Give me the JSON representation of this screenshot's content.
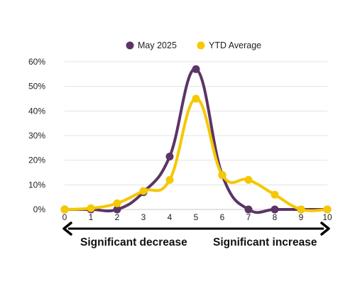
{
  "chart_data": {
    "type": "line",
    "x": [
      0,
      1,
      2,
      3,
      4,
      5,
      6,
      7,
      8,
      9,
      10
    ],
    "x_tick_labels": [
      "0",
      "1",
      "2",
      "3",
      "4",
      "5",
      "6",
      "7",
      "8",
      "9",
      "10"
    ],
    "y_tick_labels": [
      "0%",
      "10%",
      "20%",
      "30%",
      "40%",
      "50%",
      "60%"
    ],
    "ylim": [
      0,
      60
    ],
    "y_ticks": [
      0,
      10,
      20,
      30,
      40,
      50,
      60
    ],
    "grid": true,
    "legend_position": "top-center",
    "smooth": true,
    "series": [
      {
        "name": "May 2025",
        "color": "#5B3566",
        "values": [
          0,
          0,
          0,
          7,
          21.5,
          57,
          14,
          0,
          0,
          0,
          0
        ]
      },
      {
        "name": "YTD Average",
        "color": "#F5C800",
        "values": [
          0,
          0.5,
          2.5,
          7.5,
          12,
          45,
          14,
          12,
          6,
          0,
          0
        ]
      }
    ],
    "annotations": {
      "left_label": "Significant decrease",
      "right_label": "Significant increase"
    }
  }
}
